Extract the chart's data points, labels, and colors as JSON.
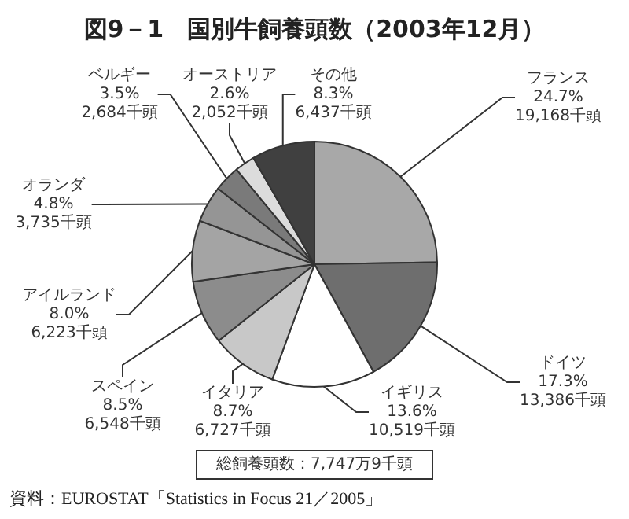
{
  "chart_data": {
    "type": "pie",
    "title": "図9－1　国別牛飼養頭数（2003年12月）",
    "categories": [
      "フランス",
      "ドイツ",
      "イギリス",
      "イタリア",
      "スペイン",
      "アイルランド",
      "オランダ",
      "ベルギー",
      "オーストリア",
      "その他"
    ],
    "values": [
      19168,
      13386,
      10519,
      6727,
      6548,
      6223,
      3735,
      2684,
      2052,
      6437
    ],
    "value_labels": [
      "24.7%\n19,168千頭",
      "17.3%\n13,386千頭",
      "13.6%\n10,519千頭",
      "8.7%\n6,727千頭",
      "8.5%\n6,548千頭",
      "8.0%\n6,223千頭",
      "4.8%\n3,735千頭",
      "3.5%\n2,684千頭",
      "2.6%\n2,052千頭",
      "8.3%\n6,437千頭"
    ],
    "colors": [
      "#a8a8a8",
      "#6e6e6e",
      "#ffffff",
      "#c8c8c8",
      "#8c8c8c",
      "#a4a4a4",
      "#959595",
      "#7a7a7a",
      "#dcdcdc",
      "#404040"
    ],
    "legend": false,
    "annotations": [
      "総飼養頭数：7,747万9千頭",
      "資料：EUROSTAT「Statistics in Focus 21／2005」"
    ]
  }
}
